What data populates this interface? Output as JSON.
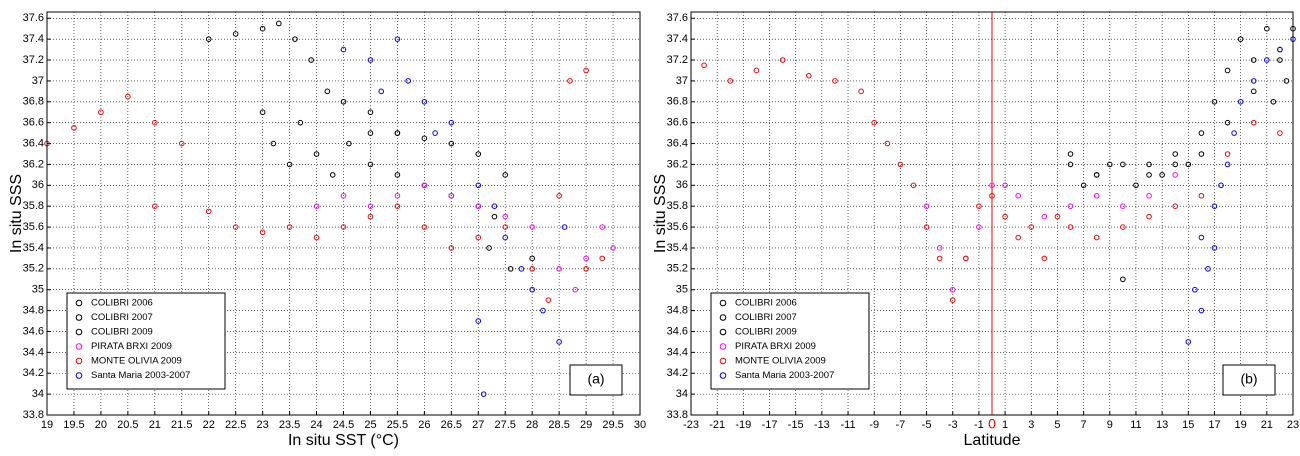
{
  "chart_data": [
    {
      "type": "scatter",
      "xlabel": "In situ SST (°C)",
      "ylabel": "In situ SSS",
      "annotation": "(a)",
      "xlim": [
        19,
        30
      ],
      "ylim": [
        33.8,
        37.66
      ],
      "xticks": [
        19,
        19.5,
        20,
        20.5,
        21,
        21.5,
        22,
        22.5,
        23,
        23.5,
        24,
        24.5,
        25,
        25.5,
        26,
        26.5,
        27,
        27.5,
        28,
        28.5,
        29,
        29.5,
        30
      ],
      "yticks": [
        33.8,
        34,
        34.2,
        34.4,
        34.6,
        34.8,
        35,
        35.2,
        35.4,
        35.6,
        35.8,
        36,
        36.2,
        36.4,
        36.6,
        36.8,
        37,
        37.2,
        37.4,
        37.6
      ],
      "grid": true,
      "legend": "lower left",
      "series": [
        {
          "name": "COLIBRI 2006",
          "color": "#000000",
          "x": [
            22,
            22.5,
            23,
            23.3,
            23.6,
            23.9,
            24.2,
            24.5,
            25,
            25.5
          ],
          "values": [
            37.4,
            37.45,
            37.5,
            37.55,
            37.4,
            37.2,
            36.9,
            36.8,
            36.7,
            36.5
          ]
        },
        {
          "name": "COLIBRI 2007",
          "color": "#000000",
          "x": [
            23,
            23.2,
            23.5,
            23.7,
            24,
            24.3,
            24.6,
            25,
            25.5,
            26,
            26.5,
            27,
            27.3
          ],
          "values": [
            36.7,
            36.4,
            36.2,
            36.6,
            36.3,
            36.1,
            36.4,
            36.2,
            36.1,
            36.0,
            35.9,
            35.8,
            35.7
          ]
        },
        {
          "name": "COLIBRI 2009",
          "color": "#000000",
          "x": [
            25,
            25.5,
            26,
            26.5,
            27,
            27.5,
            27.2,
            27.6,
            28
          ],
          "values": [
            36.5,
            36.5,
            36.45,
            36.4,
            36.3,
            36.1,
            35.4,
            35.2,
            35.3
          ]
        },
        {
          "name": "PIRATA BRXI 2009",
          "color": "#ff00ff",
          "x": [
            24,
            24.5,
            25,
            25.5,
            26,
            26.5,
            27,
            27.5,
            28,
            28.5,
            28.8,
            29,
            29.3,
            29.5
          ],
          "values": [
            35.8,
            35.9,
            35.8,
            35.9,
            36.0,
            35.9,
            35.8,
            35.7,
            35.6,
            35.2,
            35.0,
            35.3,
            35.6,
            35.4
          ]
        },
        {
          "name": "MONTE OLIVIA 2009",
          "color": "#ff0000",
          "x": [
            19,
            19.5,
            20,
            20.5,
            21,
            21.5,
            21,
            22,
            22.5,
            23,
            23.5,
            24,
            24.5,
            25,
            25.5,
            26,
            26.5,
            27,
            27.5,
            28,
            28.3,
            28.5,
            29,
            29.3,
            28.7,
            29
          ],
          "values": [
            36.4,
            36.55,
            36.7,
            36.85,
            36.6,
            36.4,
            35.8,
            35.75,
            35.6,
            35.55,
            35.6,
            35.5,
            35.6,
            35.7,
            35.8,
            35.6,
            35.4,
            35.5,
            35.6,
            35.2,
            34.9,
            35.9,
            35.2,
            35.3,
            37.0,
            37.1
          ]
        },
        {
          "name": "Santa Maria 2003-2007",
          "color": "#0000ff",
          "x": [
            24.5,
            25,
            25.2,
            25.5,
            25.7,
            26,
            26.2,
            26.5,
            27,
            27.3,
            27.5,
            27.8,
            28,
            28.2,
            28.5,
            28.6,
            27,
            27.1
          ],
          "values": [
            37.3,
            37.2,
            36.9,
            37.4,
            37.0,
            36.8,
            36.5,
            36.6,
            36.0,
            35.8,
            35.5,
            35.2,
            35.0,
            34.8,
            34.5,
            35.6,
            34.7,
            34.0
          ]
        }
      ]
    },
    {
      "type": "scatter",
      "xlabel": "Latitude",
      "ylabel": "In situ SSS",
      "annotation": "(b)",
      "xlim": [
        -23,
        23
      ],
      "ylim": [
        33.8,
        37.66
      ],
      "xticks": [
        -23,
        -21,
        -19,
        -17,
        -15,
        -13,
        -11,
        -9,
        -7,
        -5,
        -3,
        -1,
        1,
        3,
        5,
        7,
        9,
        11,
        13,
        15,
        17,
        19,
        21,
        23
      ],
      "yticks": [
        33.8,
        34,
        34.2,
        34.4,
        34.6,
        34.8,
        35,
        35.2,
        35.4,
        35.6,
        35.8,
        36,
        36.2,
        36.4,
        36.6,
        36.8,
        37,
        37.2,
        37.4,
        37.6
      ],
      "vline": {
        "x": 0,
        "color": "#ff0000"
      },
      "grid": true,
      "legend": "lower left",
      "series": [
        {
          "name": "COLIBRI 2006",
          "color": "#000000",
          "x": [
            19,
            20,
            21,
            22,
            23,
            21.5,
            22.5
          ],
          "values": [
            37.4,
            37.2,
            37.5,
            37.3,
            37.5,
            36.8,
            37.0
          ]
        },
        {
          "name": "COLIBRI 2007",
          "color": "#000000",
          "x": [
            6,
            7,
            8,
            9,
            10,
            11,
            12,
            13,
            14,
            15,
            16,
            17,
            18
          ],
          "values": [
            36.2,
            36.0,
            36.1,
            36.2,
            35.1,
            36.0,
            36.2,
            36.1,
            36.3,
            36.2,
            36.5,
            36.8,
            37.1
          ]
        },
        {
          "name": "COLIBRI 2009",
          "color": "#000000",
          "x": [
            6,
            8,
            10,
            12,
            14,
            16,
            18,
            20,
            22
          ],
          "values": [
            36.3,
            36.1,
            36.2,
            36.1,
            36.2,
            36.3,
            36.6,
            36.9,
            37.2
          ]
        },
        {
          "name": "PIRATA BRXI 2009",
          "color": "#ff00ff",
          "x": [
            -5,
            -4,
            -3,
            -2,
            -1,
            0,
            1,
            2,
            4,
            6,
            8,
            10,
            12,
            14
          ],
          "values": [
            35.8,
            35.4,
            35.0,
            35.3,
            35.6,
            36.0,
            36.0,
            35.9,
            35.7,
            35.8,
            35.9,
            35.8,
            35.9,
            36.1
          ]
        },
        {
          "name": "MONTE OLIVIA 2009",
          "color": "#ff0000",
          "x": [
            -22,
            -20,
            -18,
            -16,
            -14,
            -12,
            -10,
            -9,
            -8,
            -7,
            -6,
            -5,
            -4,
            -3,
            -2,
            -1,
            0,
            1,
            2,
            3,
            4,
            5,
            6,
            8,
            10,
            12,
            14,
            16,
            18,
            20,
            22
          ],
          "values": [
            37.15,
            37.0,
            37.1,
            37.2,
            37.05,
            37.0,
            36.9,
            36.6,
            36.4,
            36.2,
            36.0,
            35.6,
            35.3,
            34.9,
            35.3,
            35.8,
            35.9,
            35.7,
            35.5,
            35.6,
            35.3,
            35.7,
            35.6,
            35.5,
            35.6,
            35.7,
            35.8,
            35.9,
            36.3,
            36.6,
            36.5
          ]
        },
        {
          "name": "Santa Maria 2003-2007",
          "color": "#0000ff",
          "x": [
            15,
            15.5,
            16,
            16.5,
            17,
            17.5,
            18,
            18.5,
            19,
            20,
            21,
            22,
            23,
            16,
            17
          ],
          "values": [
            34.5,
            35.0,
            35.5,
            35.2,
            35.8,
            36.0,
            36.2,
            36.5,
            36.8,
            37.0,
            37.2,
            37.3,
            37.4,
            34.8,
            35.4
          ]
        }
      ]
    }
  ]
}
